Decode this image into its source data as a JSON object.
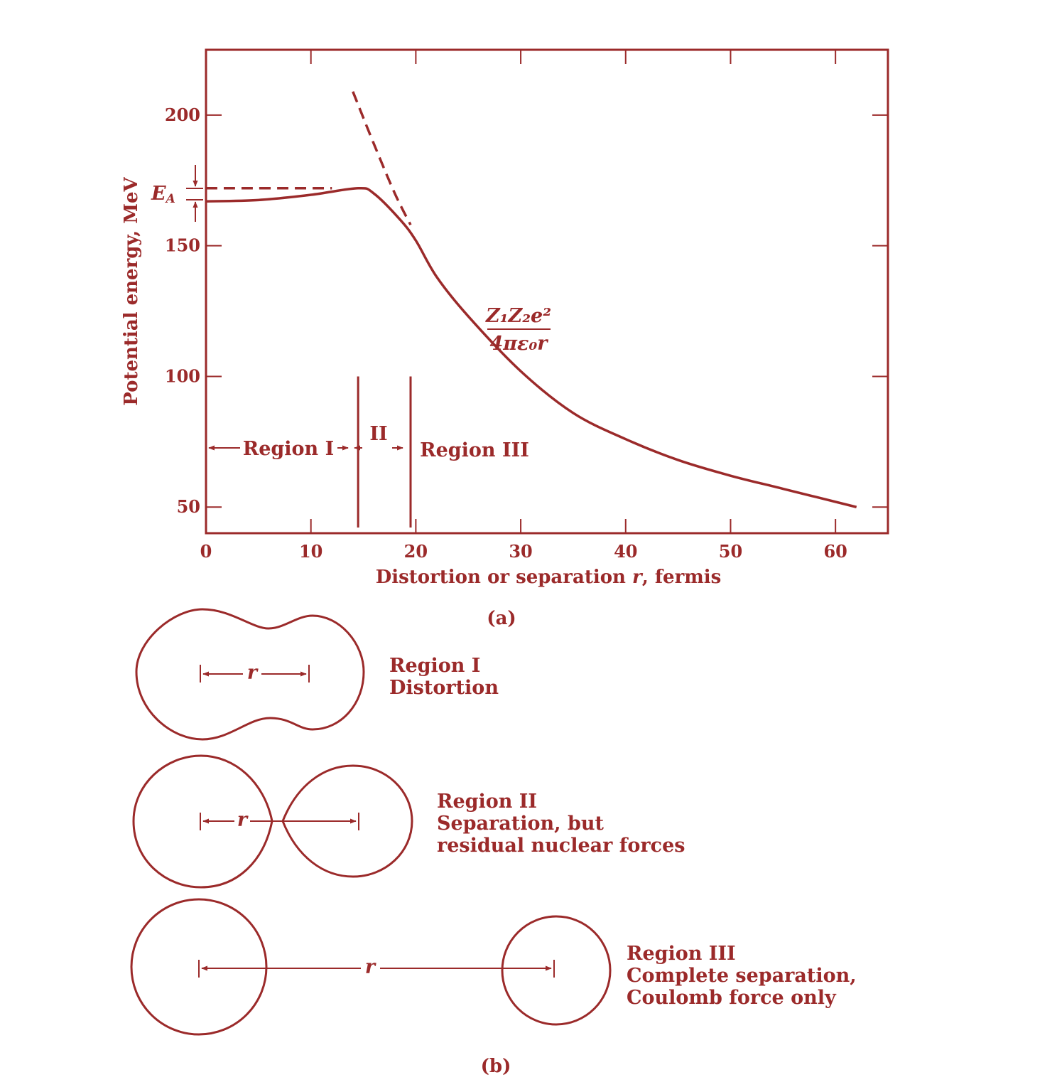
{
  "colors": {
    "ink": "#9b2a2a",
    "background": "#ffffff"
  },
  "chart_data": {
    "type": "line",
    "xlabel": "Distortion or separation",
    "xlabel_var": "r",
    "xlabel_unit": ", fermis",
    "ylabel": "Potential energy, MeV",
    "xlim": [
      0,
      65
    ],
    "ylim": [
      40,
      225
    ],
    "x_ticks": [
      "0",
      "10",
      "20",
      "30",
      "40",
      "50",
      "60"
    ],
    "y_ticks": [
      "50",
      "100",
      "150",
      "200"
    ],
    "grid": false,
    "series": [
      {
        "style": "solid",
        "x": [
          0,
          5,
          10,
          14.5,
          16,
          18.5,
          20,
          22,
          25,
          30,
          35,
          40,
          45,
          50,
          55,
          62
        ],
        "y": [
          167,
          167.5,
          169.5,
          172,
          170,
          160,
          152,
          138,
          123,
          102,
          86,
          76,
          68,
          62,
          57,
          50
        ]
      },
      {
        "style": "dashed",
        "x": [
          14,
          16,
          18,
          19.5
        ],
        "y": [
          209,
          189,
          170,
          158
        ]
      },
      {
        "style": "dashed",
        "x": [
          0,
          12
        ],
        "y": [
          172,
          172
        ]
      }
    ],
    "boundaries_x": [
      14.5,
      19.5
    ],
    "annotations": {
      "ea_label": "E",
      "ea_sub": "A",
      "formula_numerator": "Z₁Z₂e²",
      "formula_denominator": "4πε₀r",
      "region_i": "Region I",
      "region_ii": "II",
      "region_iii": "Region III"
    }
  },
  "caption_a": "(a)",
  "caption_b": "(b)",
  "panel_b": {
    "r_label": "r",
    "regions": [
      {
        "title": "Region I",
        "line1": "Distortion",
        "line2": ""
      },
      {
        "title": "Region II",
        "line1": "Separation, but",
        "line2": "residual nuclear forces"
      },
      {
        "title": "Region III",
        "line1": "Complete separation,",
        "line2": "Coulomb force only"
      }
    ]
  }
}
